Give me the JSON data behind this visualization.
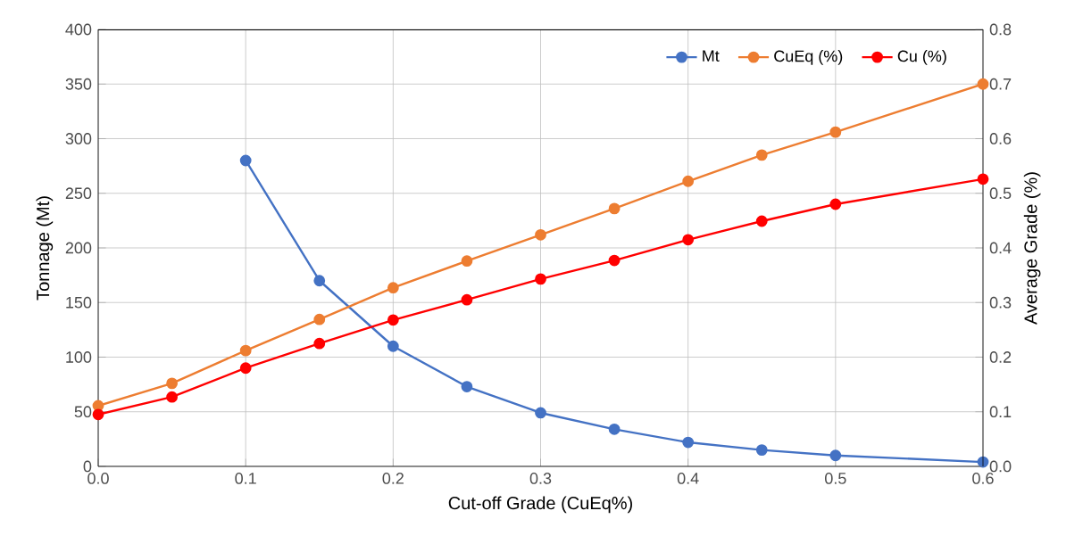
{
  "chart_data": {
    "type": "line",
    "xlabel": "Cut-off Grade (CuEq%)",
    "ylabel": "Tonnage (Mt)",
    "y2label": "Average Grade (%)",
    "x": [
      0.0,
      0.05,
      0.1,
      0.15,
      0.2,
      0.25,
      0.3,
      0.35,
      0.4,
      0.45,
      0.5,
      0.6
    ],
    "series": [
      {
        "name": "Mt",
        "color": "#4472c4",
        "values": [
          null,
          null,
          280,
          170,
          110,
          73,
          49,
          34,
          22,
          15,
          10,
          4
        ]
      },
      {
        "name": "CuEq (%)",
        "color": "#ed7d31",
        "axis": "y2",
        "values": [
          0.111,
          0.152,
          0.212,
          0.269,
          0.327,
          0.376,
          0.424,
          0.472,
          0.522,
          0.57,
          0.612,
          0.7
        ]
      },
      {
        "name": "Cu (%)",
        "color": "#ff0000",
        "axis": "y2",
        "values": [
          0.095,
          0.127,
          0.18,
          0.225,
          0.268,
          0.305,
          0.343,
          0.377,
          0.415,
          0.449,
          0.48,
          0.526
        ]
      }
    ],
    "xlim": [
      0.0,
      0.6
    ],
    "xticks": [
      {
        "value": 0.0,
        "label": "0.0"
      },
      {
        "value": 0.1,
        "label": "0.1"
      },
      {
        "value": 0.2,
        "label": "0.2"
      },
      {
        "value": 0.3,
        "label": "0.3"
      },
      {
        "value": 0.4,
        "label": "0.4"
      },
      {
        "value": 0.5,
        "label": "0.5"
      },
      {
        "value": 0.6,
        "label": "0.6"
      }
    ],
    "ylim": [
      0,
      400
    ],
    "yticks": [
      0,
      50,
      100,
      150,
      200,
      250,
      300,
      350,
      400
    ],
    "y2lim": [
      0.0,
      0.8
    ],
    "y2ticks": [
      {
        "value": 0.0,
        "label": "0.0"
      },
      {
        "value": 0.1,
        "label": "0.1"
      },
      {
        "value": 0.2,
        "label": "0.2"
      },
      {
        "value": 0.3,
        "label": "0.3"
      },
      {
        "value": 0.4,
        "label": "0.4"
      },
      {
        "value": 0.5,
        "label": "0.5"
      },
      {
        "value": 0.6,
        "label": "0.6"
      },
      {
        "value": 0.7,
        "label": "0.7"
      },
      {
        "value": 0.8,
        "label": "0.8"
      }
    ],
    "grid": true,
    "legend": "top right",
    "marker": "circle",
    "line_style": "solid"
  }
}
